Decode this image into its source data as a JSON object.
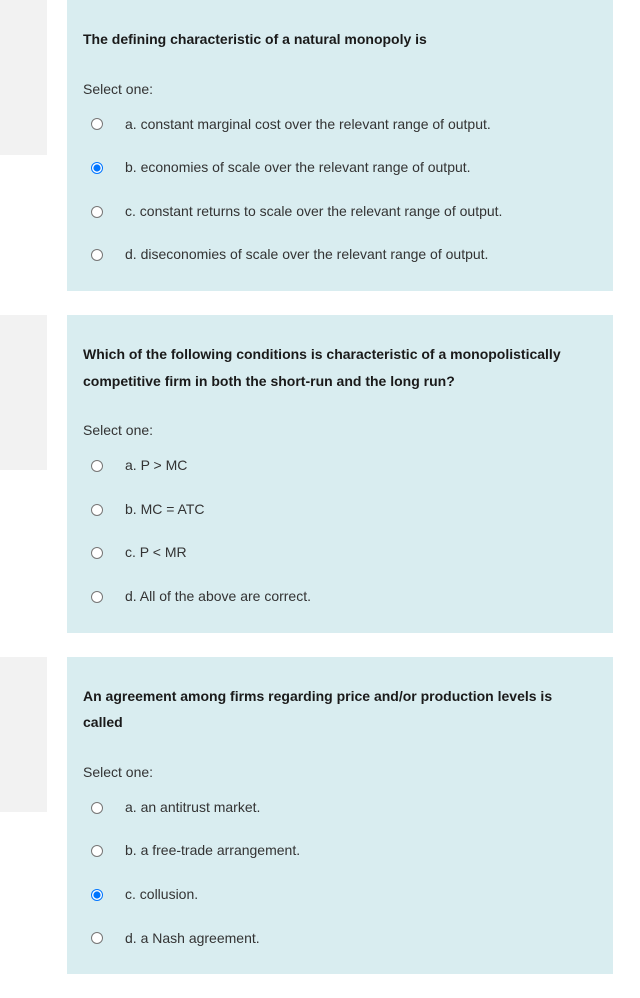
{
  "colors": {
    "card_bg": "#d9edf0",
    "side_bg": "#f2f2f2",
    "text_primary": "#1a1a1a",
    "text_body": "#333333"
  },
  "questions": [
    {
      "prompt": "The defining characteristic of a natural monopoly is",
      "select_label": "Select one:",
      "options": [
        {
          "label": "a. constant marginal cost over the relevant range of output.",
          "checked": false
        },
        {
          "label": "b. economies of scale over the relevant range of output.",
          "checked": true
        },
        {
          "label": "c. constant returns to scale over the relevant range of output.",
          "checked": false
        },
        {
          "label": "d. diseconomies of scale over the relevant range of output.",
          "checked": false
        }
      ]
    },
    {
      "prompt": "Which of the following conditions is characteristic of a monopolistically competitive firm in both the short-run and the long run?",
      "select_label": "Select one:",
      "options": [
        {
          "label": "a. P > MC",
          "checked": false
        },
        {
          "label": "b. MC = ATC",
          "checked": false
        },
        {
          "label": "c. P < MR",
          "checked": false
        },
        {
          "label": "d. All of the above are correct.",
          "checked": false
        }
      ]
    },
    {
      "prompt": "An agreement among firms regarding price and/or production levels is called",
      "select_label": "Select one:",
      "options": [
        {
          "label": "a. an antitrust market.",
          "checked": false
        },
        {
          "label": "b. a free-trade arrangement.",
          "checked": false
        },
        {
          "label": "c. collusion.",
          "checked": true
        },
        {
          "label": "d. a Nash agreement.",
          "checked": false
        }
      ]
    }
  ]
}
